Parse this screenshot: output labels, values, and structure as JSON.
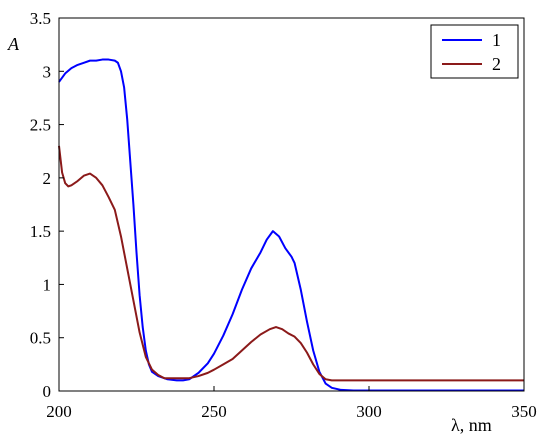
{
  "chart_data": {
    "type": "line",
    "xlabel": "λ, nm",
    "ylabel": "A",
    "xlim": [
      200,
      350
    ],
    "ylim": [
      0,
      3.5
    ],
    "x_ticks": [
      200,
      250,
      300,
      350
    ],
    "y_ticks": [
      0,
      0.5,
      1,
      1.5,
      2,
      2.5,
      3,
      3.5
    ],
    "x_tick_labels": [
      "200",
      "250",
      "300",
      "350"
    ],
    "y_tick_labels": [
      "0",
      "0.5",
      "1",
      "1.5",
      "2",
      "2.5",
      "3",
      "3.5"
    ],
    "grid": false,
    "legend_position": "top-right",
    "series": [
      {
        "name": "1",
        "color": "#0000ff",
        "points": [
          [
            200,
            2.9
          ],
          [
            202,
            2.98
          ],
          [
            204,
            3.03
          ],
          [
            206,
            3.06
          ],
          [
            208,
            3.08
          ],
          [
            210,
            3.1
          ],
          [
            212,
            3.1
          ],
          [
            214,
            3.11
          ],
          [
            216,
            3.11
          ],
          [
            218,
            3.1
          ],
          [
            219,
            3.08
          ],
          [
            220,
            3.0
          ],
          [
            221,
            2.85
          ],
          [
            222,
            2.55
          ],
          [
            223,
            2.15
          ],
          [
            224,
            1.75
          ],
          [
            225,
            1.3
          ],
          [
            226,
            0.9
          ],
          [
            227,
            0.6
          ],
          [
            228,
            0.38
          ],
          [
            229,
            0.25
          ],
          [
            230,
            0.18
          ],
          [
            232,
            0.14
          ],
          [
            235,
            0.11
          ],
          [
            238,
            0.1
          ],
          [
            240,
            0.1
          ],
          [
            242,
            0.11
          ],
          [
            245,
            0.17
          ],
          [
            248,
            0.26
          ],
          [
            250,
            0.35
          ],
          [
            253,
            0.52
          ],
          [
            256,
            0.72
          ],
          [
            259,
            0.95
          ],
          [
            262,
            1.15
          ],
          [
            265,
            1.3
          ],
          [
            267,
            1.42
          ],
          [
            269,
            1.5
          ],
          [
            271,
            1.45
          ],
          [
            273,
            1.34
          ],
          [
            275,
            1.26
          ],
          [
            276,
            1.2
          ],
          [
            278,
            0.95
          ],
          [
            280,
            0.65
          ],
          [
            282,
            0.38
          ],
          [
            284,
            0.18
          ],
          [
            286,
            0.07
          ],
          [
            288,
            0.03
          ],
          [
            291,
            0.01
          ],
          [
            295,
            0.005
          ],
          [
            300,
            0.005
          ],
          [
            310,
            0.005
          ],
          [
            320,
            0.005
          ],
          [
            330,
            0.005
          ],
          [
            340,
            0.005
          ],
          [
            350,
            0.005
          ]
        ]
      },
      {
        "name": "2",
        "color": "#8b1a1a",
        "points": [
          [
            200,
            2.3
          ],
          [
            201,
            2.05
          ],
          [
            202,
            1.95
          ],
          [
            203,
            1.92
          ],
          [
            204,
            1.93
          ],
          [
            206,
            1.97
          ],
          [
            208,
            2.02
          ],
          [
            210,
            2.04
          ],
          [
            212,
            2.0
          ],
          [
            214,
            1.93
          ],
          [
            216,
            1.82
          ],
          [
            218,
            1.7
          ],
          [
            220,
            1.45
          ],
          [
            222,
            1.15
          ],
          [
            224,
            0.85
          ],
          [
            226,
            0.55
          ],
          [
            228,
            0.32
          ],
          [
            230,
            0.2
          ],
          [
            232,
            0.15
          ],
          [
            234,
            0.12
          ],
          [
            236,
            0.12
          ],
          [
            238,
            0.12
          ],
          [
            240,
            0.12
          ],
          [
            242,
            0.12
          ],
          [
            245,
            0.14
          ],
          [
            248,
            0.17
          ],
          [
            250,
            0.2
          ],
          [
            253,
            0.25
          ],
          [
            256,
            0.3
          ],
          [
            259,
            0.38
          ],
          [
            262,
            0.46
          ],
          [
            265,
            0.53
          ],
          [
            268,
            0.58
          ],
          [
            270,
            0.6
          ],
          [
            272,
            0.58
          ],
          [
            274,
            0.54
          ],
          [
            276,
            0.51
          ],
          [
            278,
            0.45
          ],
          [
            280,
            0.36
          ],
          [
            282,
            0.25
          ],
          [
            284,
            0.16
          ],
          [
            286,
            0.11
          ],
          [
            288,
            0.1
          ],
          [
            290,
            0.1
          ],
          [
            300,
            0.1
          ],
          [
            310,
            0.1
          ],
          [
            320,
            0.1
          ],
          [
            330,
            0.1
          ],
          [
            340,
            0.1
          ],
          [
            350,
            0.1
          ]
        ]
      }
    ]
  }
}
